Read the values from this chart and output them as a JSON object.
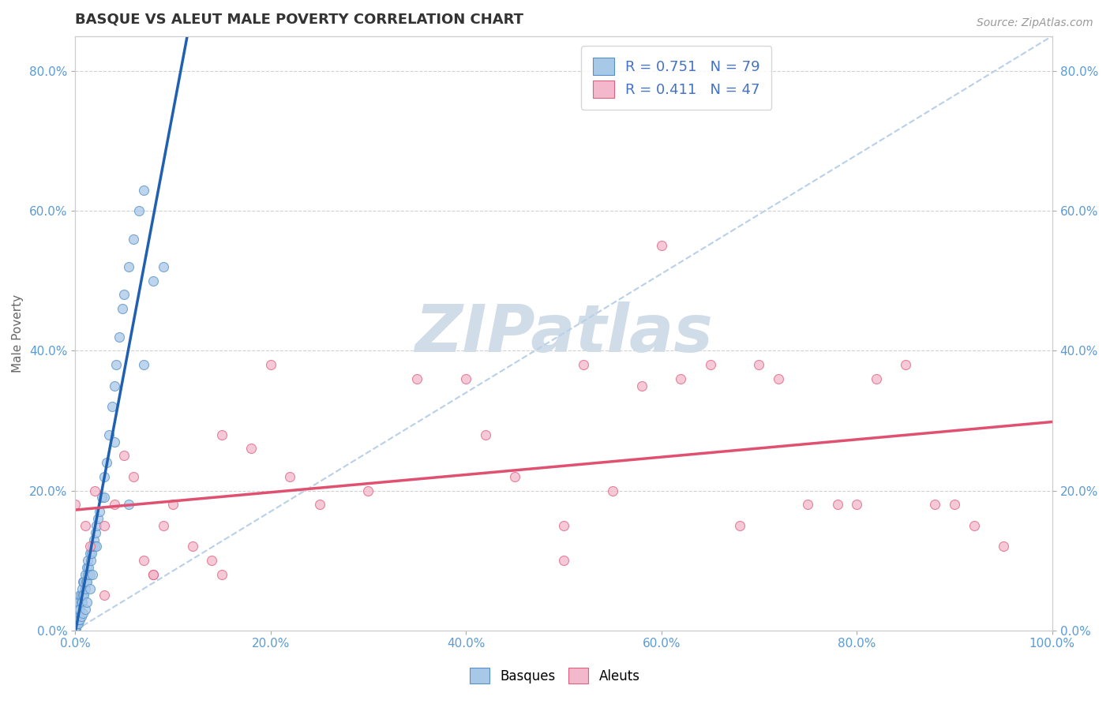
{
  "title": "BASQUE VS ALEUT MALE POVERTY CORRELATION CHART",
  "source": "Source: ZipAtlas.com",
  "ylabel": "Male Poverty",
  "basque_R": 0.751,
  "basque_N": 79,
  "aleut_R": 0.411,
  "aleut_N": 47,
  "basque_color": "#a8c8e8",
  "aleut_color": "#f4b8cc",
  "basque_edge_color": "#5590c8",
  "aleut_edge_color": "#e06080",
  "basque_line_color": "#2060b0",
  "aleut_line_color": "#e05070",
  "identity_line_color": "#b8d0e8",
  "grid_color": "#cccccc",
  "title_color": "#333333",
  "tick_color": "#5b9bd5",
  "legend_text_color": "#4472c4",
  "watermark_color": "#d0dde8",
  "background": "#ffffff",
  "xlim": [
    0,
    1.0
  ],
  "ylim": [
    0,
    0.85
  ],
  "xticks": [
    0.0,
    0.2,
    0.4,
    0.6,
    0.8,
    1.0
  ],
  "yticks": [
    0.0,
    0.2,
    0.4,
    0.6,
    0.8
  ],
  "basque_x": [
    0.0,
    0.0,
    0.0,
    0.0,
    0.001,
    0.001,
    0.001,
    0.002,
    0.002,
    0.002,
    0.003,
    0.003,
    0.003,
    0.004,
    0.004,
    0.005,
    0.005,
    0.005,
    0.006,
    0.006,
    0.007,
    0.007,
    0.008,
    0.008,
    0.009,
    0.009,
    0.01,
    0.01,
    0.011,
    0.012,
    0.012,
    0.013,
    0.013,
    0.014,
    0.015,
    0.015,
    0.016,
    0.017,
    0.018,
    0.019,
    0.02,
    0.021,
    0.022,
    0.023,
    0.025,
    0.027,
    0.03,
    0.032,
    0.035,
    0.038,
    0.04,
    0.042,
    0.045,
    0.048,
    0.05,
    0.055,
    0.06,
    0.065,
    0.07,
    0.08,
    0.0,
    0.0,
    0.001,
    0.002,
    0.003,
    0.004,
    0.005,
    0.006,
    0.008,
    0.01,
    0.012,
    0.015,
    0.018,
    0.022,
    0.03,
    0.04,
    0.055,
    0.07,
    0.09
  ],
  "basque_y": [
    0.0,
    0.01,
    0.02,
    0.03,
    0.0,
    0.01,
    0.02,
    0.01,
    0.02,
    0.03,
    0.02,
    0.03,
    0.04,
    0.03,
    0.04,
    0.02,
    0.03,
    0.05,
    0.04,
    0.05,
    0.04,
    0.06,
    0.05,
    0.07,
    0.05,
    0.07,
    0.06,
    0.08,
    0.07,
    0.07,
    0.09,
    0.08,
    0.1,
    0.09,
    0.08,
    0.11,
    0.1,
    0.11,
    0.12,
    0.13,
    0.12,
    0.14,
    0.15,
    0.16,
    0.17,
    0.19,
    0.22,
    0.24,
    0.28,
    0.32,
    0.35,
    0.38,
    0.42,
    0.46,
    0.48,
    0.52,
    0.56,
    0.6,
    0.63,
    0.5,
    0.0,
    0.005,
    0.005,
    0.01,
    0.01,
    0.015,
    0.015,
    0.02,
    0.025,
    0.03,
    0.04,
    0.06,
    0.08,
    0.12,
    0.19,
    0.27,
    0.18,
    0.38,
    0.52
  ],
  "aleut_x": [
    0.0,
    0.01,
    0.015,
    0.02,
    0.03,
    0.04,
    0.05,
    0.06,
    0.07,
    0.08,
    0.09,
    0.1,
    0.12,
    0.14,
    0.15,
    0.18,
    0.2,
    0.22,
    0.25,
    0.3,
    0.35,
    0.4,
    0.42,
    0.45,
    0.5,
    0.52,
    0.55,
    0.58,
    0.6,
    0.62,
    0.65,
    0.68,
    0.7,
    0.72,
    0.75,
    0.78,
    0.8,
    0.82,
    0.85,
    0.88,
    0.9,
    0.92,
    0.95,
    0.03,
    0.08,
    0.15,
    0.5
  ],
  "aleut_y": [
    0.18,
    0.15,
    0.12,
    0.2,
    0.05,
    0.18,
    0.25,
    0.22,
    0.1,
    0.08,
    0.15,
    0.18,
    0.12,
    0.1,
    0.28,
    0.26,
    0.38,
    0.22,
    0.18,
    0.2,
    0.36,
    0.36,
    0.28,
    0.22,
    0.15,
    0.38,
    0.2,
    0.35,
    0.55,
    0.36,
    0.38,
    0.15,
    0.38,
    0.36,
    0.18,
    0.18,
    0.18,
    0.36,
    0.38,
    0.18,
    0.18,
    0.15,
    0.12,
    0.15,
    0.08,
    0.08,
    0.1
  ]
}
